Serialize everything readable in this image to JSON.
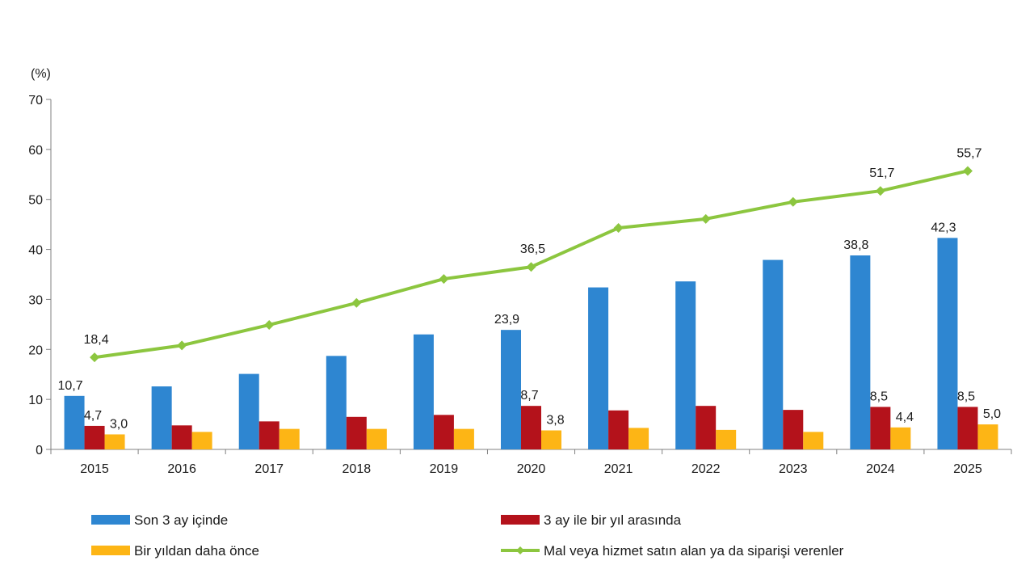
{
  "chart_data": {
    "type": "bar",
    "unit_label": "(%)",
    "categories": [
      "2015",
      "2016",
      "2017",
      "2018",
      "2019",
      "2020",
      "2021",
      "2022",
      "2023",
      "2024",
      "2025"
    ],
    "ylim": [
      0,
      70
    ],
    "yticks": [
      "0",
      "10",
      "20",
      "30",
      "40",
      "50",
      "60",
      "70"
    ],
    "grid": false,
    "legend_position": "bottom",
    "colors": {
      "son3": "#2E86D1",
      "ucay": "#B4121B",
      "biryil": "#FDB515",
      "line": "#8CC63F"
    },
    "series": [
      {
        "name": "Son 3 ay içinde",
        "type": "bar",
        "color_key": "son3",
        "values": [
          10.7,
          12.6,
          15.1,
          18.7,
          23.0,
          23.9,
          32.4,
          33.6,
          37.9,
          38.8,
          42.3
        ],
        "labels": [
          "10,7",
          null,
          null,
          null,
          null,
          "23,9",
          null,
          null,
          null,
          "38,8",
          "42,3"
        ]
      },
      {
        "name": "3 ay ile bir yıl arasında",
        "type": "bar",
        "color_key": "ucay",
        "values": [
          4.7,
          4.8,
          5.6,
          6.5,
          6.9,
          8.7,
          7.8,
          8.7,
          7.9,
          8.5,
          8.5
        ],
        "labels": [
          "4,7",
          null,
          null,
          null,
          null,
          "8,7",
          null,
          null,
          null,
          "8,5",
          "8,5"
        ]
      },
      {
        "name": "Bir yıldan daha önce",
        "type": "bar",
        "color_key": "biryil",
        "values": [
          3.0,
          3.5,
          4.1,
          4.1,
          4.1,
          3.8,
          4.3,
          3.9,
          3.5,
          4.4,
          5.0
        ],
        "labels": [
          "3,0",
          null,
          null,
          null,
          null,
          "3,8",
          null,
          null,
          null,
          "4,4",
          "5,0"
        ]
      },
      {
        "name": "Mal veya hizmet satın alan ya da siparişi verenler",
        "type": "line",
        "color_key": "line",
        "values": [
          18.4,
          20.8,
          24.9,
          29.3,
          34.1,
          36.5,
          44.3,
          46.1,
          49.5,
          51.7,
          55.7
        ],
        "labels": [
          "18,4",
          null,
          null,
          null,
          null,
          "36,5",
          null,
          null,
          null,
          "51,7",
          "55,7"
        ]
      }
    ]
  }
}
